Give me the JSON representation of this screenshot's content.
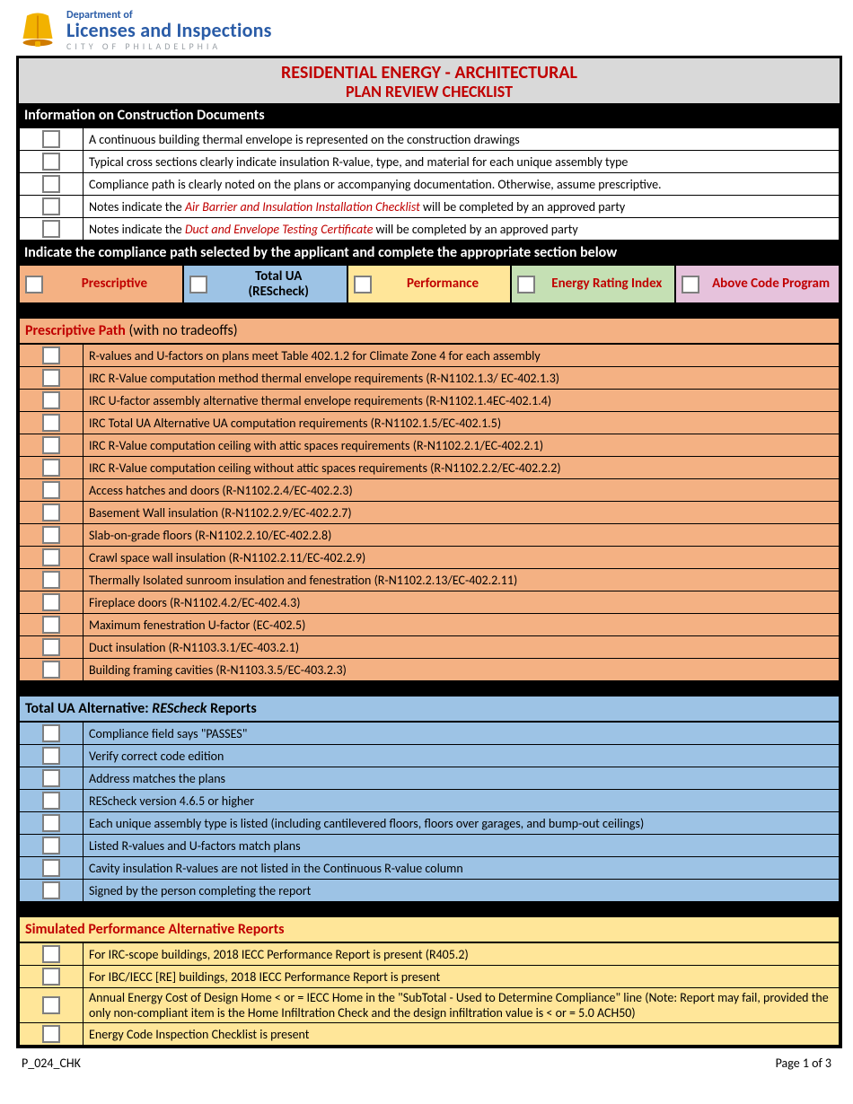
{
  "logo": {
    "dept": "Department of",
    "main": "Licenses and Inspections",
    "city": "CITY OF PHILADELPHIA",
    "bell_color": "#f2b200",
    "bell_shadow": "#d07c00"
  },
  "title": {
    "line1": "RESIDENTIAL ENERGY - ARCHITECTURAL",
    "line2": "PLAN REVIEW CHECKLIST"
  },
  "section_info": {
    "header": "Information on Construction Documents",
    "items": [
      "A continuous building thermal envelope is represented on the construction drawings",
      "Typical cross sections clearly indicate insulation R-value, type, and material for each unique assembly type",
      "Compliance path is clearly noted on the plans or accompanying documentation. Otherwise, assume prescriptive.",
      "Notes indicate the |Air Barrier and Insulation Installation Checklist| will be completed by an approved party",
      "Notes indicate the |Duct and Envelope Testing Certificate| will be completed by an approved party"
    ]
  },
  "compliance_header": "Indicate the compliance path selected by the applicant and complete the appropriate section below",
  "paths": [
    {
      "label": "Prescriptive",
      "bg": "bg-orange",
      "color": "#c00000"
    },
    {
      "label": "Total UA (REScheck)",
      "bg": "bg-blue",
      "color": "#000"
    },
    {
      "label": "Performance",
      "bg": "bg-yellow",
      "color": "#c00000"
    },
    {
      "label": "Energy Rating Index",
      "bg": "bg-green",
      "color": "#c00000"
    },
    {
      "label": "Above Code Program",
      "bg": "bg-pink",
      "color": "#c00000"
    }
  ],
  "prescriptive": {
    "header_html": "Prescriptive Path (with no tradeoffs)",
    "items": [
      "R-values and U-factors on plans meet Table 402.1.2 for Climate Zone 4 for each assembly",
      "IRC R-Value computation method thermal envelope requirements (R-N1102.1.3/ EC-402.1.3)",
      "IRC U-factor assembly alternative thermal envelope requirements (R-N1102.1.4EC-402.1.4)",
      "IRC Total UA Alternative UA computation requirements (R-N1102.1.5/EC-402.1.5)",
      "IRC R-Value computation ceiling with attic spaces requirements   (R-N1102.2.1/EC-402.2.1)",
      "IRC R-Value computation ceiling without attic spaces requirements (R-N1102.2.2/EC-402.2.2)",
      "Access hatches and doors (R-N1102.2.4/EC-402.2.3)",
      "Basement Wall insulation (R-N1102.2.9/EC-402.2.7)",
      "Slab-on-grade floors (R-N1102.2.10/EC-402.2.8)",
      "Crawl space wall insulation (R-N1102.2.11/EC-402.2.9)",
      "Thermally Isolated sunroom insulation and fenestration (R-N1102.2.13/EC-402.2.11)",
      "Fireplace doors (R-N1102.4.2/EC-402.4.3)",
      "Maximum fenestration U-factor (EC-402.5)",
      "Duct insulation (R-N1103.3.1/EC-403.2.1)",
      "Building framing cavities (R-N1103.3.5/EC-403.2.3)"
    ]
  },
  "rescheck": {
    "header_prefix": "Total UA Alternative: ",
    "header_ital": "REScheck",
    "header_suffix": " Reports",
    "items": [
      "Compliance field says \"PASSES\"",
      "Verify correct code edition",
      "Address matches the plans",
      "REScheck version 4.6.5 or higher",
      "Each unique assembly type is listed (including cantilevered floors, floors over garages, and bump-out ceilings)",
      "Listed R-values and U-factors match plans",
      "Cavity insulation R-values are not listed in the Continuous R-value column",
      "Signed by the person completing the report"
    ]
  },
  "performance": {
    "header": "Simulated Performance Alternative Reports",
    "items": [
      "For IRC-scope buildings, 2018 IECC Performance Report is present (R405.2)",
      "For IBC/IECC [RE] buildings, 2018 IECC Performance Report is present",
      "Annual Energy Cost of Design Home < or = IECC Home in the \"SubTotal - Used to Determine Compliance\" line (Note: Report may fail, provided the only non-compliant item is the Home Infiltration Check and the design infiltration value is < or = 5.0 ACH50)",
      "Energy Code Inspection Checklist is present"
    ]
  },
  "footer": {
    "left": "P_024_CHK",
    "right": "Page 1 of 3"
  }
}
